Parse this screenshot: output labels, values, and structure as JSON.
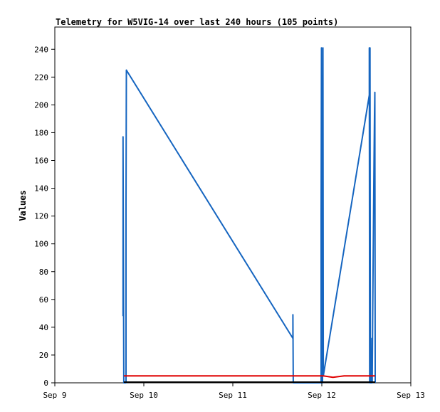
{
  "chart_data": {
    "type": "line",
    "title": "Telemetry for W5VIG-14 over last 240 hours (105 points)",
    "xlabel": "",
    "ylabel": "Values",
    "xlim": [
      "2023-09-09",
      "2023-09-13"
    ],
    "ylim": [
      0,
      256
    ],
    "x_ticks": [
      "Sep 9",
      "Sep 10",
      "Sep 11",
      "Sep 12",
      "Sep 13"
    ],
    "y_ticks": [
      0,
      20,
      40,
      60,
      80,
      100,
      120,
      140,
      160,
      180,
      200,
      220,
      240
    ],
    "grid": false,
    "legend": "none",
    "colors": {
      "blue": "#1565c0",
      "red": "#e00000",
      "black": "#000000"
    },
    "series": [
      {
        "color": "#1565c0",
        "points": [
          [
            "2023-09-09 18:24",
            48
          ],
          [
            "2023-09-09 18:24",
            177
          ],
          [
            "2023-09-09 18:30",
            88
          ],
          [
            "2023-09-09 18:36",
            0
          ],
          [
            "2023-09-09 19:12",
            0
          ],
          [
            "2023-09-09 19:12",
            128
          ],
          [
            "2023-09-09 19:18",
            225
          ],
          [
            "2023-09-11 16:12",
            32
          ],
          [
            "2023-09-11 16:12",
            49
          ],
          [
            "2023-09-11 16:18",
            0
          ],
          [
            "2023-09-11 16:24",
            0
          ],
          [
            "2023-09-11 23:48",
            0
          ],
          [
            "2023-09-11 23:48",
            120
          ],
          [
            "2023-09-11 23:54",
            241
          ],
          [
            "2023-09-12 00:00",
            0
          ],
          [
            "2023-09-12 00:06",
            145
          ],
          [
            "2023-09-12 00:12",
            0
          ],
          [
            "2023-09-12 00:18",
            241
          ],
          [
            "2023-09-12 00:24",
            5
          ],
          [
            "2023-09-12 12:48",
            207
          ],
          [
            "2023-09-12 12:48",
            241
          ],
          [
            "2023-09-12 12:54",
            0
          ],
          [
            "2023-09-12 13:00",
            241
          ],
          [
            "2023-09-12 13:06",
            0
          ],
          [
            "2023-09-12 13:24",
            0
          ],
          [
            "2023-09-12 13:30",
            32
          ],
          [
            "2023-09-12 13:36",
            0
          ],
          [
            "2023-09-12 13:42",
            45
          ],
          [
            "2023-09-12 13:48",
            75
          ],
          [
            "2023-09-12 13:54",
            105
          ],
          [
            "2023-09-12 14:00",
            135
          ],
          [
            "2023-09-12 14:06",
            163
          ],
          [
            "2023-09-12 14:12",
            193
          ],
          [
            "2023-09-12 14:18",
            209
          ],
          [
            "2023-09-12 14:24",
            0
          ]
        ]
      },
      {
        "color": "#e00000",
        "points": [
          [
            "2023-09-09 18:36",
            5
          ],
          [
            "2023-09-12 00:24",
            5
          ],
          [
            "2023-09-12 03:00",
            4
          ],
          [
            "2023-09-12 06:00",
            5
          ],
          [
            "2023-09-12 14:24",
            5
          ]
        ]
      },
      {
        "color": "#000000",
        "points": [
          [
            "2023-09-09 18:36",
            0.5
          ],
          [
            "2023-09-12 14:24",
            0.5
          ]
        ]
      }
    ]
  }
}
